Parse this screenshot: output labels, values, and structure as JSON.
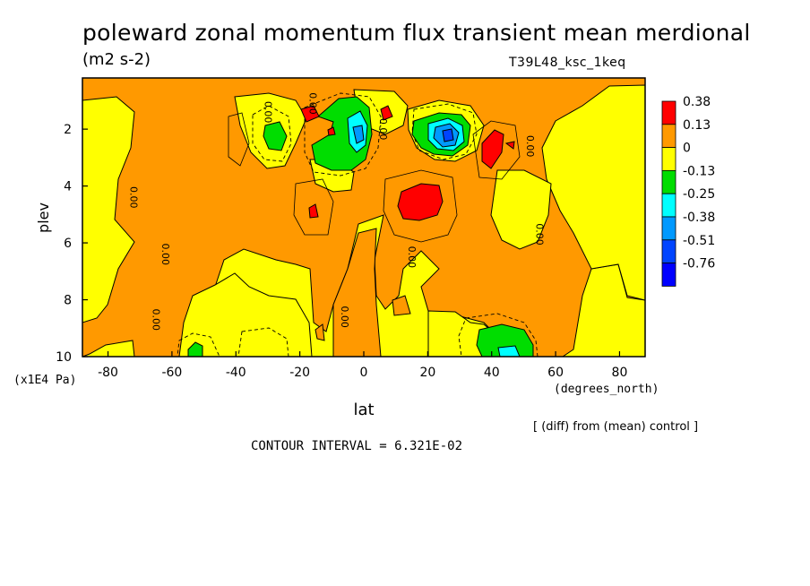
{
  "title": "poleward zonal momentum flux transient mean merdional",
  "units": "(m2 s-2)",
  "run_label": "T39L48_ksc_1keq",
  "diff_note": "[ (diff) from (mean) control ]",
  "contour_interval": "CONTOUR INTERVAL = 6.321E-02",
  "chart_data": {
    "type": "contour",
    "xlabel": "lat",
    "x_unit": "(degrees_north)",
    "ylabel": "plev",
    "y_unit": "(x1E4 Pa)",
    "xlim": [
      -88,
      88
    ],
    "ylim": [
      0.2,
      10
    ],
    "y_inverted": true,
    "x_ticks": [
      -80,
      -60,
      -40,
      -20,
      0,
      20,
      40,
      60,
      80
    ],
    "y_ticks": [
      2,
      4,
      6,
      8,
      10
    ],
    "legend": {
      "placement": "right",
      "levels": [
        "0.38",
        "0.13",
        "0",
        "-0.13",
        "-0.25",
        "-0.38",
        "-0.51",
        "-0.76"
      ],
      "colors": [
        "#ff0000",
        "#ff9900",
        "#ffff00",
        "#00dd00",
        "#00ffff",
        "#0099ff",
        "#0044ff",
        "#0000ff"
      ]
    },
    "contour_labels": [
      {
        "lat": -73,
        "plev": 4.4,
        "text": "0.00"
      },
      {
        "lat": -63,
        "plev": 6.4,
        "text": "0.00"
      },
      {
        "lat": -66,
        "plev": 8.7,
        "text": "0.00"
      },
      {
        "lat": -31,
        "plev": 1.4,
        "text": "0.00"
      },
      {
        "lat": -17,
        "plev": 1.1,
        "text": "0.00"
      },
      {
        "lat": -7,
        "plev": 8.6,
        "text": "0.00"
      },
      {
        "lat": 5,
        "plev": 2.0,
        "text": "0.00"
      },
      {
        "lat": 14,
        "plev": 6.5,
        "text": "0.00"
      },
      {
        "lat": 51,
        "plev": 2.6,
        "text": "0.00"
      },
      {
        "lat": 54,
        "plev": 5.7,
        "text": "0.00"
      }
    ]
  }
}
